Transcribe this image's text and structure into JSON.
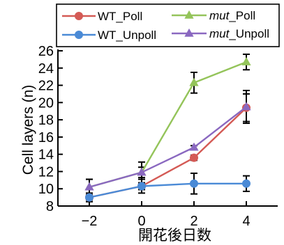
{
  "chart_data": {
    "type": "line",
    "xlabel": "開花後日数",
    "ylabel": "Cell layers (n)",
    "x": [
      -2,
      0,
      2,
      4
    ],
    "xticks": [
      -2,
      0,
      2,
      4
    ],
    "xtick_labels": [
      "−2",
      "0",
      "2",
      "4"
    ],
    "xlim": [
      -3.2,
      5.2
    ],
    "yticks": [
      8,
      10,
      12,
      14,
      16,
      18,
      20,
      22,
      24,
      26
    ],
    "ylim": [
      8,
      26
    ],
    "legend_position": "top",
    "series": [
      {
        "name": "WT_Poll",
        "color": "#d45a55",
        "marker": "circle",
        "values": [
          9.0,
          10.3,
          13.6,
          19.4
        ],
        "errors": [
          0.5,
          0.8,
          0.3,
          1.6
        ]
      },
      {
        "name": "WT_Unpoll",
        "color": "#4a8ad6",
        "marker": "circle",
        "values": [
          9.0,
          10.3,
          10.6,
          10.6
        ],
        "errors": [
          0.3,
          0.4,
          1.2,
          0.9
        ]
      },
      {
        "name_parts": [
          "mut",
          "_Poll"
        ],
        "name": "mut_Poll",
        "color": "#94c45a",
        "marker": "triangle",
        "values": [
          10.2,
          11.9,
          22.3,
          24.7
        ],
        "errors": [
          0.9,
          1.2,
          1.2,
          0.9
        ]
      },
      {
        "name_parts": [
          "mut",
          "_Unpoll"
        ],
        "name": "mut_Unpoll",
        "color": "#8a68c0",
        "marker": "triangle",
        "values": [
          10.2,
          11.9,
          14.8,
          19.5
        ],
        "errors": [
          0.9,
          0.6,
          0.2,
          1.9
        ]
      }
    ]
  }
}
